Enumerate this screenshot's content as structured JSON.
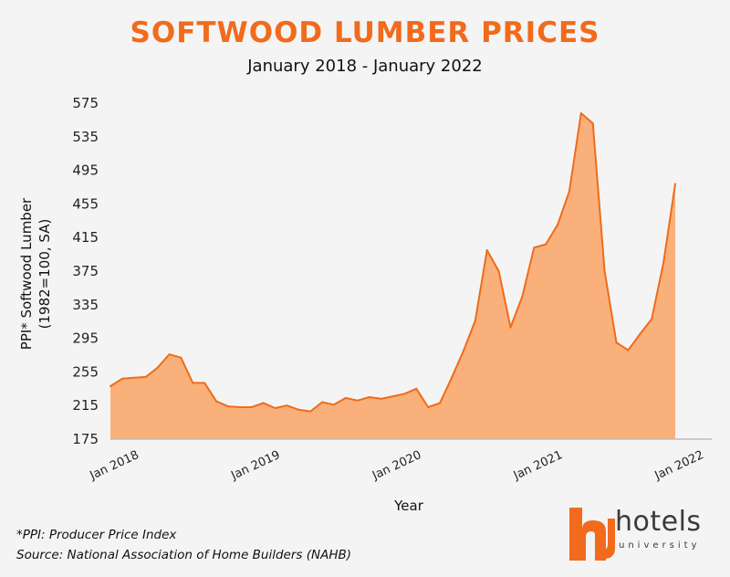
{
  "chart_data": {
    "type": "area",
    "title": "SOFTWOOD LUMBER PRICES",
    "subtitle": "January 2018 - January 2022",
    "xlabel": "Year",
    "ylabel_lines": [
      "PPI* Softwood Lumber",
      "(1982=100, SA)"
    ],
    "ylim": [
      175,
      575
    ],
    "yticks": [
      175,
      215,
      255,
      295,
      335,
      375,
      415,
      455,
      495,
      535,
      575
    ],
    "xticks": [
      {
        "label": "Jan 2018",
        "index": 0
      },
      {
        "label": "Jan 2019",
        "index": 12
      },
      {
        "label": "Jan 2020",
        "index": 24
      },
      {
        "label": "Jan 2021",
        "index": 36
      },
      {
        "label": "Jan 2022",
        "index": 48
      }
    ],
    "grid": false,
    "series": [
      {
        "values": [
          238,
          247,
          248,
          249,
          260,
          276,
          272,
          242,
          242,
          220,
          214,
          213,
          213,
          218,
          212,
          215,
          210,
          208,
          219,
          216,
          224,
          221,
          225,
          223,
          226,
          229,
          235,
          213,
          218,
          248,
          280,
          316,
          400,
          375,
          308,
          345,
          403,
          407,
          430,
          470,
          563,
          551,
          375,
          290,
          281,
          300,
          318,
          385,
          479
        ]
      }
    ],
    "colors": {
      "line": "#ef6c1a",
      "fill": "#f9b07a"
    }
  },
  "footnotes": {
    "ppi": "*PPI: Producer Price Index",
    "source": "Source: National Association of Home Builders (NAHB)"
  },
  "logo": {
    "word": "hotels",
    "sub": "university"
  }
}
